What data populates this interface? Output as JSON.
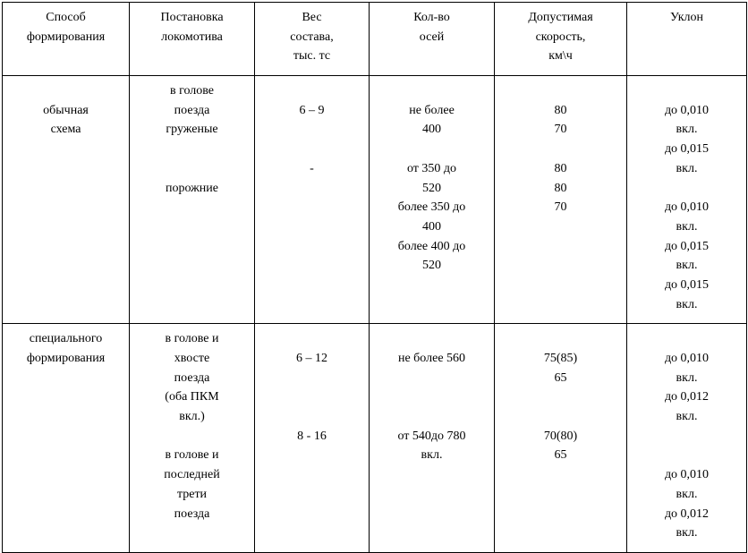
{
  "table": {
    "columns": [
      "Способ\nформирования",
      "Постановка\nлокомотива",
      "Вес\nсостава,\nтыс. тс",
      "Кол-во\nосей",
      "Допустимая\nскорость,\nкм\\ч",
      "Уклон"
    ],
    "rows": [
      {
        "c0": "\nобычная\nсхема",
        "c1": "в голове\nпоезда\nгруженые\n\n\nпорожние",
        "c2": "\n6 – 9\n\n\n-",
        "c3": "\nне более\n400\n\nот 350 до\n520\nболее 350 до\n400\nболее 400 до\n520",
        "c4": "\n80\n70\n\n80\n80\n70",
        "c5": "\nдо 0,010\nвкл.\nдо 0,015\nвкл.\n\nдо 0,010\nвкл.\nдо 0,015\nвкл.\nдо 0,015\nвкл."
      },
      {
        "c0": "специального\nформирования",
        "c1": "в голове и\nхвосте\nпоезда\n(оба ПКМ\nвкл.)\n\nв голове и\nпоследней\nтрети\nпоезда",
        "c2": "\n6 – 12\n\n\n\n8 - 16",
        "c3": "\nне более 560\n\n\n\nот 540до 780\nвкл.",
        "c4": "\n75(85)\n65\n\n\n70(80)\n65",
        "c5": "\nдо 0,010\nвкл.\nдо 0,012\nвкл.\n\n\nдо 0,010\nвкл.\nдо 0,012\nвкл."
      }
    ],
    "font_family": "Times New Roman",
    "font_size_pt": 11,
    "border_color": "#000000",
    "background_color": "#ffffff",
    "text_color": "#000000"
  }
}
